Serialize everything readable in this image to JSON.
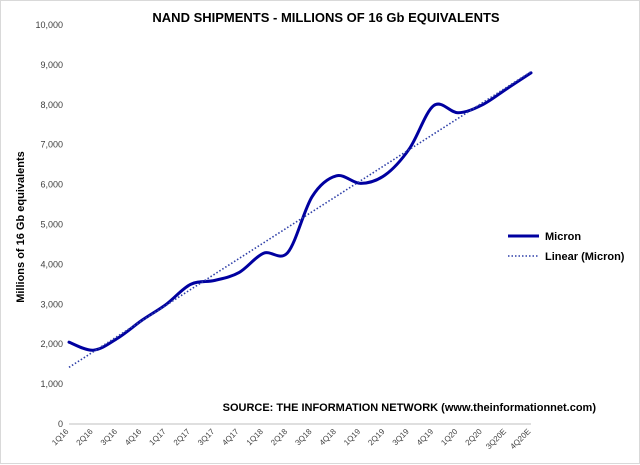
{
  "chart_data": {
    "type": "line",
    "title": "NAND SHIPMENTS - MILLIONS OF 16 Gb EQUIVALENTS",
    "ylabel": "Millions of 16 Gb equivalents",
    "xlabel": "",
    "ylim": [
      0,
      10000
    ],
    "yticks": [
      "0",
      "1,000",
      "2,000",
      "3,000",
      "4,000",
      "5,000",
      "6,000",
      "7,000",
      "8,000",
      "9,000",
      "10,000"
    ],
    "categories": [
      "1Q16",
      "2Q16",
      "3Q16",
      "4Q16",
      "1Q17",
      "2Q17",
      "3Q17",
      "4Q17",
      "1Q18",
      "2Q18",
      "3Q18",
      "4Q18",
      "1Q19",
      "2Q19",
      "3Q19",
      "4Q19",
      "1Q20",
      "2Q20",
      "3Q20E",
      "4Q20E"
    ],
    "series": [
      {
        "name": "Micron",
        "color": "#0000a0",
        "style": "solid",
        "values": [
          2050,
          1850,
          2150,
          2600,
          3000,
          3500,
          3600,
          3800,
          4280,
          4300,
          5700,
          6220,
          6030,
          6240,
          6900,
          7980,
          7800,
          8000,
          8400,
          8800
        ]
      },
      {
        "name": "Linear (Micron)",
        "color": "#2e3fa8",
        "style": "dotted",
        "values": [
          1420,
          1810,
          2200,
          2590,
          2980,
          3370,
          3760,
          4150,
          4540,
          4930,
          5320,
          5710,
          6100,
          6490,
          6880,
          7270,
          7660,
          8050,
          8440,
          8830
        ]
      }
    ],
    "legend_position": "right",
    "grid": false,
    "annotation": "SOURCE: THE INFORMATION NETWORK (www.theinformationnet.com)"
  }
}
